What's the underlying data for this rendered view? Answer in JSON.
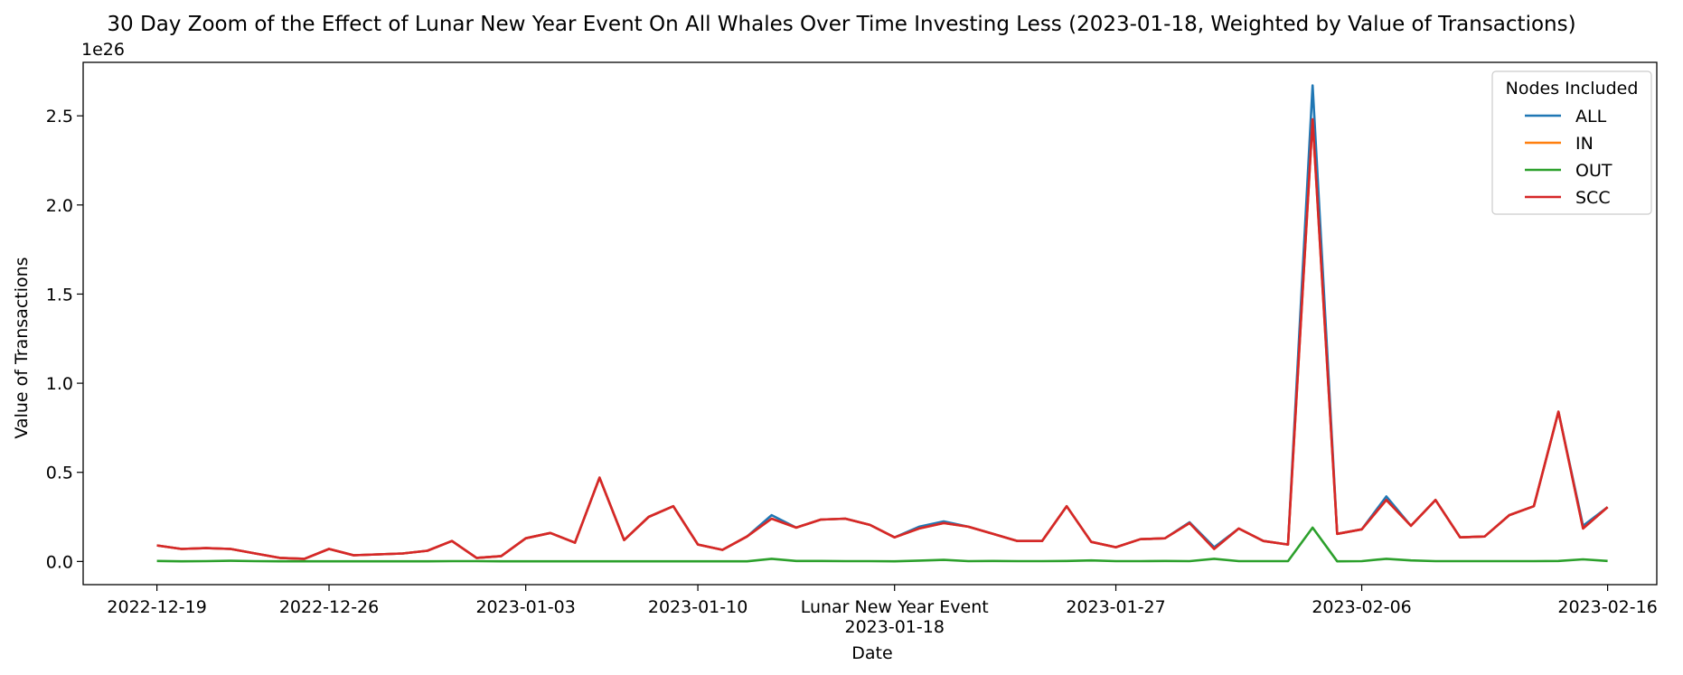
{
  "chart_data": {
    "type": "line",
    "title": "30 Day Zoom of the Effect of Lunar New Year Event On All Whales Over Time Investing Less (2023-01-18, Weighted by Value of Transactions)",
    "xlabel": "Date",
    "ylabel": "Value of Transactions",
    "y_scale_label": "1e26",
    "y_unit_multiplier": 1e+26,
    "ylim": [
      -0.13,
      2.8
    ],
    "xlim": [
      "2022-12-16",
      "2023-02-18"
    ],
    "x_ticks": [
      {
        "date": "2022-12-19",
        "label": "2022-12-19"
      },
      {
        "date": "2022-12-26",
        "label": "2022-12-26"
      },
      {
        "date": "2023-01-03",
        "label": "2023-01-03"
      },
      {
        "date": "2023-01-10",
        "label": "2023-01-10"
      },
      {
        "date": "2023-01-18",
        "label": "2023-01-18",
        "extra_label": "Lunar New Year Event"
      },
      {
        "date": "2023-01-27",
        "label": "2023-01-27"
      },
      {
        "date": "2023-02-06",
        "label": "2023-02-06"
      },
      {
        "date": "2023-02-16",
        "label": "2023-02-16"
      }
    ],
    "y_ticks": [
      {
        "value": 0.0,
        "label": "0.0"
      },
      {
        "value": 0.5,
        "label": "0.5"
      },
      {
        "value": 1.0,
        "label": "1.0"
      },
      {
        "value": 1.5,
        "label": "1.5"
      },
      {
        "value": 2.0,
        "label": "2.0"
      },
      {
        "value": 2.5,
        "label": "2.5"
      }
    ],
    "legend": {
      "title": "Nodes Included",
      "placement": "top-right"
    },
    "x": [
      "2022-12-19",
      "2022-12-20",
      "2022-12-21",
      "2022-12-22",
      "2022-12-23",
      "2022-12-24",
      "2022-12-25",
      "2022-12-26",
      "2022-12-27",
      "2022-12-28",
      "2022-12-29",
      "2022-12-30",
      "2022-12-31",
      "2023-01-01",
      "2023-01-02",
      "2023-01-03",
      "2023-01-04",
      "2023-01-05",
      "2023-01-06",
      "2023-01-07",
      "2023-01-08",
      "2023-01-09",
      "2023-01-10",
      "2023-01-11",
      "2023-01-12",
      "2023-01-13",
      "2023-01-14",
      "2023-01-15",
      "2023-01-16",
      "2023-01-17",
      "2023-01-18",
      "2023-01-19",
      "2023-01-20",
      "2023-01-21",
      "2023-01-22",
      "2023-01-23",
      "2023-01-24",
      "2023-01-25",
      "2023-01-26",
      "2023-01-27",
      "2023-01-28",
      "2023-01-29",
      "2023-01-30",
      "2023-01-31",
      "2023-02-01",
      "2023-02-02",
      "2023-02-03",
      "2023-02-04",
      "2023-02-05",
      "2023-02-06",
      "2023-02-07",
      "2023-02-08",
      "2023-02-09",
      "2023-02-10",
      "2023-02-11",
      "2023-02-12",
      "2023-02-13",
      "2023-02-14",
      "2023-02-15",
      "2023-02-16"
    ],
    "series": [
      {
        "name": "ALL",
        "color": "#1f77b4",
        "values": [
          0.09,
          0.07,
          0.075,
          0.07,
          0.045,
          0.02,
          0.015,
          0.07,
          0.035,
          0.04,
          0.045,
          0.06,
          0.115,
          0.02,
          0.03,
          0.13,
          0.16,
          0.105,
          0.47,
          0.12,
          0.25,
          0.31,
          0.095,
          0.065,
          0.14,
          0.26,
          0.19,
          0.235,
          0.24,
          0.205,
          0.135,
          0.195,
          0.225,
          0.195,
          0.155,
          0.115,
          0.115,
          0.31,
          0.11,
          0.08,
          0.125,
          0.13,
          0.22,
          0.08,
          0.185,
          0.115,
          0.095,
          2.67,
          0.155,
          0.18,
          0.365,
          0.2,
          0.345,
          0.135,
          0.14,
          0.26,
          0.31,
          0.84,
          0.2,
          0.305
        ]
      },
      {
        "name": "IN",
        "color": "#ff7f0e",
        "values": [
          0.09,
          0.07,
          0.075,
          0.07,
          0.045,
          0.02,
          0.015,
          0.07,
          0.035,
          0.04,
          0.045,
          0.06,
          0.115,
          0.02,
          0.03,
          0.13,
          0.16,
          0.105,
          0.47,
          0.12,
          0.25,
          0.31,
          0.095,
          0.065,
          0.14,
          0.24,
          0.19,
          0.235,
          0.24,
          0.205,
          0.135,
          0.185,
          0.215,
          0.195,
          0.155,
          0.115,
          0.115,
          0.31,
          0.11,
          0.08,
          0.125,
          0.13,
          0.215,
          0.07,
          0.185,
          0.115,
          0.095,
          2.48,
          0.155,
          0.18,
          0.345,
          0.2,
          0.345,
          0.135,
          0.14,
          0.26,
          0.31,
          0.84,
          0.185,
          0.305
        ]
      },
      {
        "name": "OUT",
        "color": "#2ca02c",
        "values": [
          0.003,
          0.001,
          0.002,
          0.004,
          0.002,
          0.001,
          0.001,
          0.001,
          0.001,
          0.001,
          0.001,
          0.001,
          0.002,
          0.002,
          0.001,
          0.001,
          0.001,
          0.001,
          0.001,
          0.001,
          0.001,
          0.001,
          0.001,
          0.001,
          0.001,
          0.015,
          0.003,
          0.003,
          0.002,
          0.002,
          0.001,
          0.005,
          0.009,
          0.002,
          0.003,
          0.002,
          0.002,
          0.003,
          0.006,
          0.002,
          0.002,
          0.003,
          0.002,
          0.015,
          0.002,
          0.002,
          0.002,
          0.19,
          0.001,
          0.002,
          0.015,
          0.006,
          0.002,
          0.002,
          0.002,
          0.002,
          0.002,
          0.003,
          0.012,
          0.003
        ]
      },
      {
        "name": "SCC",
        "color": "#d62728",
        "values": [
          0.09,
          0.07,
          0.075,
          0.07,
          0.045,
          0.02,
          0.015,
          0.07,
          0.035,
          0.04,
          0.045,
          0.06,
          0.115,
          0.02,
          0.03,
          0.13,
          0.16,
          0.105,
          0.47,
          0.12,
          0.25,
          0.31,
          0.095,
          0.065,
          0.14,
          0.24,
          0.19,
          0.235,
          0.24,
          0.205,
          0.135,
          0.185,
          0.215,
          0.195,
          0.155,
          0.115,
          0.115,
          0.31,
          0.11,
          0.08,
          0.125,
          0.13,
          0.215,
          0.07,
          0.185,
          0.115,
          0.095,
          2.48,
          0.155,
          0.18,
          0.345,
          0.2,
          0.345,
          0.135,
          0.14,
          0.26,
          0.31,
          0.84,
          0.185,
          0.305
        ]
      }
    ]
  }
}
